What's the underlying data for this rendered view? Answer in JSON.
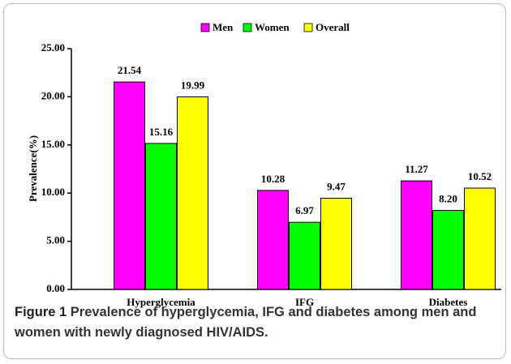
{
  "chart_data": {
    "type": "bar",
    "categories": [
      "Hyperglycemia",
      "IFG",
      "Diabetes"
    ],
    "series": [
      {
        "name": "Men",
        "color": "#ff00ff",
        "values": [
          21.54,
          10.28,
          11.27
        ],
        "value_labels": [
          "21.54",
          "10.28",
          "11.27"
        ]
      },
      {
        "name": "Women",
        "color": "#00ff00",
        "values": [
          15.16,
          6.97,
          8.2
        ],
        "value_labels": [
          "15.16",
          "6.97",
          "8.20"
        ]
      },
      {
        "name": "Overall",
        "color": "#ffff00",
        "values": [
          19.99,
          9.47,
          10.52
        ],
        "value_labels": [
          "19.99",
          "9.47",
          "10.52"
        ]
      }
    ],
    "ylabel": "Prevalence(%)",
    "ylim": [
      0,
      25
    ],
    "yticks": [
      {
        "value": 0,
        "label": "0.00"
      },
      {
        "value": 5,
        "label": "5.00"
      },
      {
        "value": 10,
        "label": "10.00"
      },
      {
        "value": 15,
        "label": "15.00"
      },
      {
        "value": 20,
        "label": "20.00"
      },
      {
        "value": 25,
        "label": "25.00"
      }
    ],
    "grid": false,
    "legend": "top",
    "caption": {
      "label": "Figure 1",
      "text": "Prevalence of hyperglycemia, IFG and diabetes among men and women with newly diagnosed HIV/AIDS."
    }
  }
}
